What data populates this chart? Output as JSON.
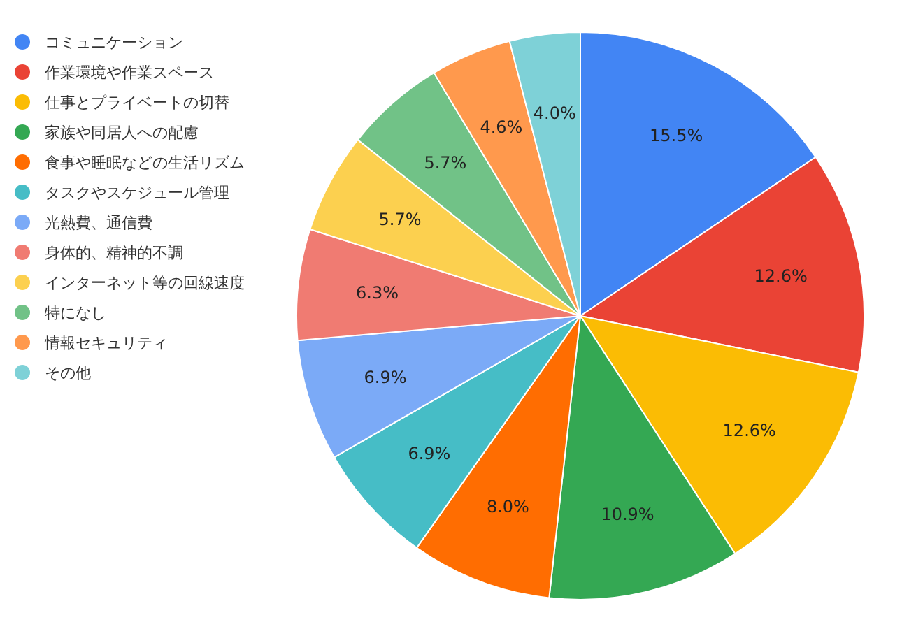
{
  "chart_data": {
    "type": "pie",
    "categories": [
      "コミュニケーション",
      "作業環境や作業スペース",
      "仕事とプライベートの切替",
      "家族や同居人への配慮",
      "食事や睡眠などの生活リズム",
      "タスクやスケジュール管理",
      "光熱費、通信費",
      "身体的、精神的不調",
      "インターネット等の回線速度",
      "特になし",
      "情報セキュリティ",
      "その他"
    ],
    "values": [
      15.5,
      12.6,
      12.6,
      10.9,
      8.0,
      6.9,
      6.9,
      6.3,
      5.7,
      5.7,
      4.6,
      4.0
    ],
    "value_labels": [
      "15.5%",
      "12.6%",
      "12.6%",
      "10.9%",
      "8.0%",
      "6.9%",
      "6.9%",
      "6.3%",
      "5.7%",
      "5.7%",
      "4.6%",
      "4.0%"
    ],
    "colors": [
      "#4285f4",
      "#ea4335",
      "#fbbc04",
      "#34a853",
      "#ff6d01",
      "#46bdc6",
      "#7baaf7",
      "#f07b72",
      "#fcd04f",
      "#71c287",
      "#ff994d",
      "#7ed1d7"
    ],
    "legend": "left"
  }
}
